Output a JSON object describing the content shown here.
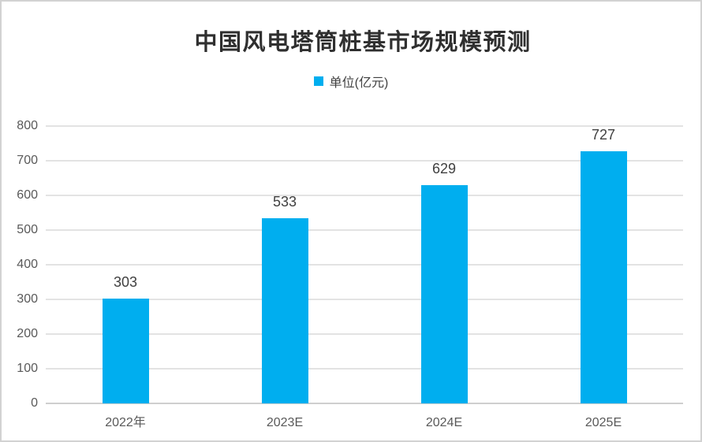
{
  "window": {
    "background": "#ffffff",
    "border_color": "#d2d2d2"
  },
  "chart_data": {
    "type": "bar",
    "title": "中国风电塔筒桩基市场规模预测",
    "legend": {
      "label": "单位(亿元)",
      "color": "#00aeef",
      "position": "top"
    },
    "categories": [
      "2022年",
      "2023E",
      "2024E",
      "2025E"
    ],
    "values": [
      303,
      533,
      629,
      727
    ],
    "value_labels": [
      "303",
      "533",
      "629",
      "727"
    ],
    "bar_color": "#00aeef",
    "xlabel": "",
    "ylabel": "",
    "ylim": [
      0,
      800
    ],
    "ytick_step": 100,
    "yticks": [
      0,
      100,
      200,
      300,
      400,
      500,
      600,
      700,
      800
    ],
    "grid": true,
    "gridline_color": "#e3e3e3",
    "axis_line_color": "#cfcfcf",
    "tick_label_color": "#595959",
    "value_label_color": "#404040",
    "title_color": "#2f2f2f"
  }
}
